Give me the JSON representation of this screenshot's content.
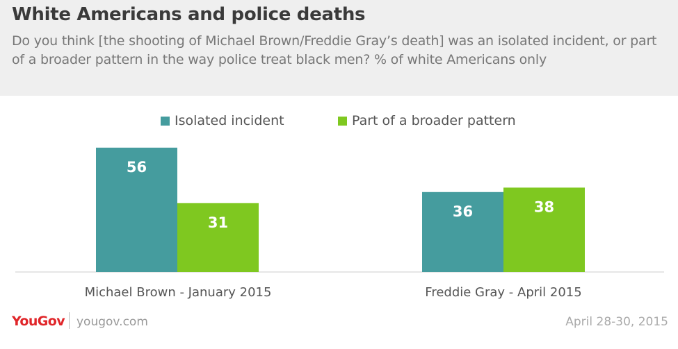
{
  "header": {
    "title": "White Americans and police deaths",
    "subtitle": "Do you think [the shooting of Michael Brown/Freddie Gray’s death] was an isolated incident, or part of a broader pattern in the way police treat black men? % of white Americans only"
  },
  "chart_data": {
    "type": "bar",
    "categories": [
      "Michael Brown - January 2015",
      "Freddie Gray - April 2015"
    ],
    "series": [
      {
        "name": "Isolated incident",
        "values": [
          56,
          36
        ],
        "color": "#459c9e"
      },
      {
        "name": "Part of a broader pattern",
        "values": [
          31,
          38
        ],
        "color": "#7fc820"
      }
    ],
    "ylim": [
      0,
      60
    ],
    "grid": false,
    "legend_position": "top-center",
    "data_labels": true,
    "axis_line_color": "#cccccc"
  },
  "footer": {
    "brand": "YouGov",
    "url": "yougov.com",
    "date": "April 28-30, 2015",
    "brand_color": "#e0262a"
  }
}
